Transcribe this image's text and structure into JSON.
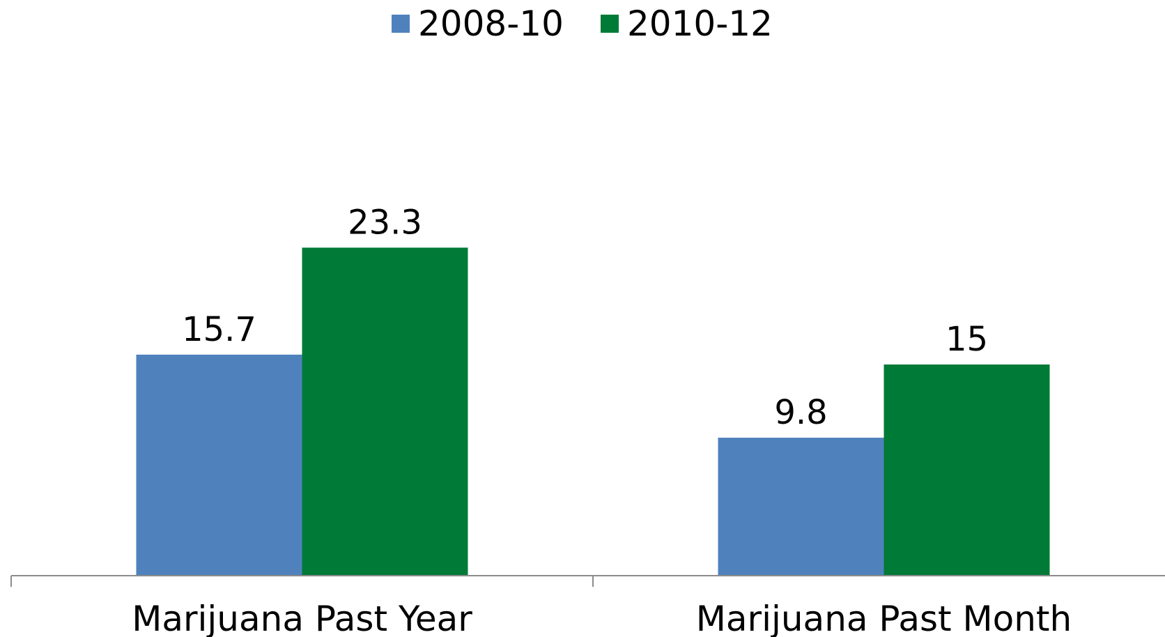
{
  "chart_data": {
    "type": "bar",
    "title": "",
    "xlabel": "",
    "ylabel": "",
    "categories": [
      "Marijuana Past Year",
      "Marijuana Past Month"
    ],
    "series": [
      {
        "name": "2008-10",
        "values": [
          15.7,
          9.8
        ],
        "value_labels": [
          "15.7",
          "9.8"
        ],
        "color": "#4F81BD"
      },
      {
        "name": "2010-12",
        "values": [
          23.3,
          15
        ],
        "value_labels": [
          "23.3",
          "15"
        ],
        "color": "#007A37"
      }
    ],
    "ylim": [
      0,
      40
    ],
    "grid": false,
    "y_axis_visible": false,
    "legend_position": "top-center"
  }
}
